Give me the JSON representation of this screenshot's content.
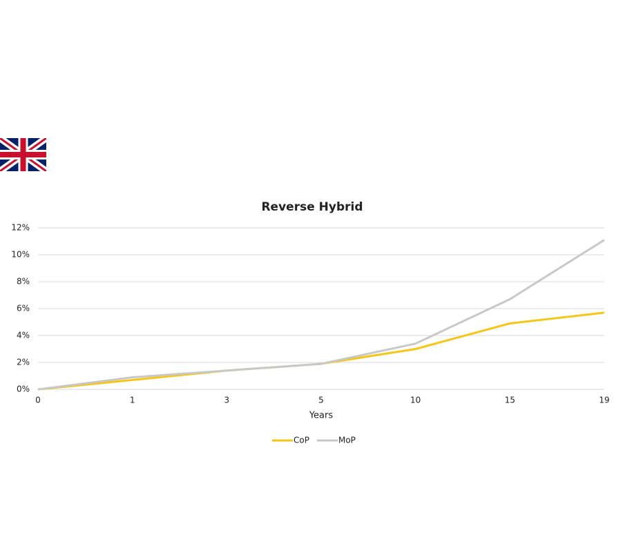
{
  "chart_data": {
    "type": "line",
    "title": "Reverse Hybrid",
    "x_label": "Years",
    "categories": [
      "0",
      "1",
      "3",
      "5",
      "10",
      "15",
      "19"
    ],
    "series": [
      {
        "name": "CoP",
        "color": "#f5c518",
        "values": [
          0,
          0.7,
          1.4,
          1.9,
          3.0,
          4.9,
          5.7
        ]
      },
      {
        "name": "MoP",
        "color": "#c8c8c8",
        "values": [
          0,
          0.9,
          1.4,
          1.9,
          3.4,
          6.7,
          11.1
        ]
      }
    ],
    "ylim": [
      0,
      12
    ],
    "yticks": [
      {
        "value": 0,
        "label": "0%"
      },
      {
        "value": 2,
        "label": "2%"
      },
      {
        "value": 4,
        "label": "4%"
      },
      {
        "value": 6,
        "label": "6%"
      },
      {
        "value": 8,
        "label": "8%"
      },
      {
        "value": 10,
        "label": "10%"
      },
      {
        "value": 12,
        "label": "12%"
      }
    ],
    "grid": true,
    "legend": "bottom"
  }
}
